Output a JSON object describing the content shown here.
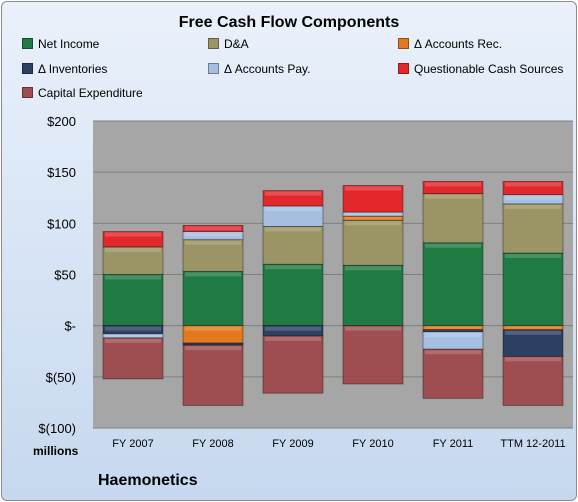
{
  "chart_data": {
    "type": "bar",
    "stacked": true,
    "title": "Free Cash Flow Components",
    "units_label": "millions",
    "company": "Haemonetics",
    "categories": [
      "FY 2007",
      "FY 2008",
      "FY 2009",
      "FY 2010",
      "FY 2011",
      "TTM 12-2011"
    ],
    "ylim": [
      -100,
      200
    ],
    "yticks": [
      200,
      150,
      100,
      50,
      0,
      -50,
      -100
    ],
    "ytick_labels": [
      "$200",
      "$150",
      "$100",
      "$50",
      "$-",
      "$(50)",
      "$(100)"
    ],
    "grid": true,
    "legend_position": "top",
    "series": [
      {
        "name": "Net Income",
        "color": "#1f7a44",
        "values": [
          50,
          53,
          60,
          59,
          81,
          71
        ]
      },
      {
        "name": "D&A",
        "color": "#9b9465",
        "values": [
          27,
          31,
          37,
          44,
          48,
          48
        ]
      },
      {
        "name": "Δ Accounts Rec.",
        "color": "#e2791f",
        "values": [
          0,
          -17,
          0,
          4,
          -4,
          -4
        ]
      },
      {
        "name": "Δ Inventories",
        "color": "#2b4063",
        "values": [
          -8,
          -2,
          -10,
          0,
          -2,
          -26
        ]
      },
      {
        "name": "Δ Accounts Pay.",
        "color": "#a6bfe0",
        "values": [
          -4,
          8,
          20,
          4,
          -17,
          9
        ]
      },
      {
        "name": "Questionable Cash Sources",
        "color": "#e3282c",
        "values": [
          15,
          6,
          15,
          26,
          12,
          13
        ]
      },
      {
        "name": "Capital Expenditure",
        "color": "#9e4d50",
        "values": [
          -40,
          -59,
          -56,
          -57,
          -48,
          -48
        ]
      }
    ]
  }
}
